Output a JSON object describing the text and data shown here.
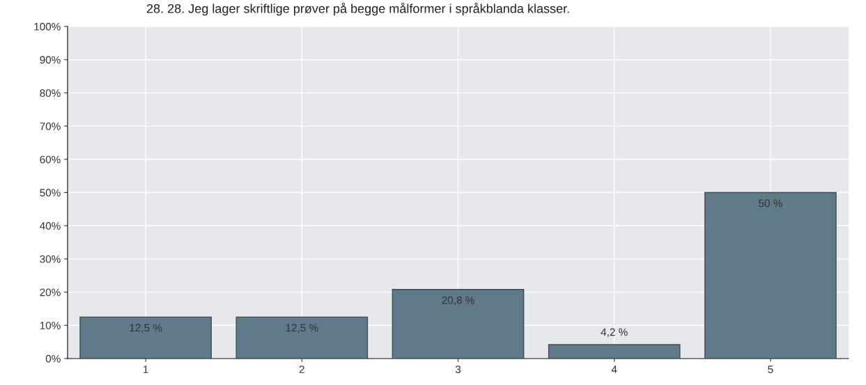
{
  "chart_data": {
    "type": "bar",
    "title": "28. 28. Jeg lager skriftlige prøver på begge målformer i språkblanda klasser.",
    "categories": [
      "1",
      "2",
      "3",
      "4",
      "5"
    ],
    "values": [
      12.5,
      12.5,
      20.8,
      4.2,
      50
    ],
    "value_labels": [
      "12,5 %",
      "12,5 %",
      "20,8 %",
      "4,2 %",
      "50 %"
    ],
    "color": "#617a87",
    "ylim": [
      0,
      100
    ],
    "yticks": [
      {
        "value": 0,
        "label": "0%"
      },
      {
        "value": 10,
        "label": "10%"
      },
      {
        "value": 20,
        "label": "20%"
      },
      {
        "value": 30,
        "label": "30%"
      },
      {
        "value": 40,
        "label": "40%"
      },
      {
        "value": 50,
        "label": "50%"
      },
      {
        "value": 60,
        "label": "60%"
      },
      {
        "value": 70,
        "label": "70%"
      },
      {
        "value": 80,
        "label": "80%"
      },
      {
        "value": 90,
        "label": "90%"
      },
      {
        "value": 100,
        "label": "100%"
      }
    ],
    "grid": true,
    "legend": false
  }
}
